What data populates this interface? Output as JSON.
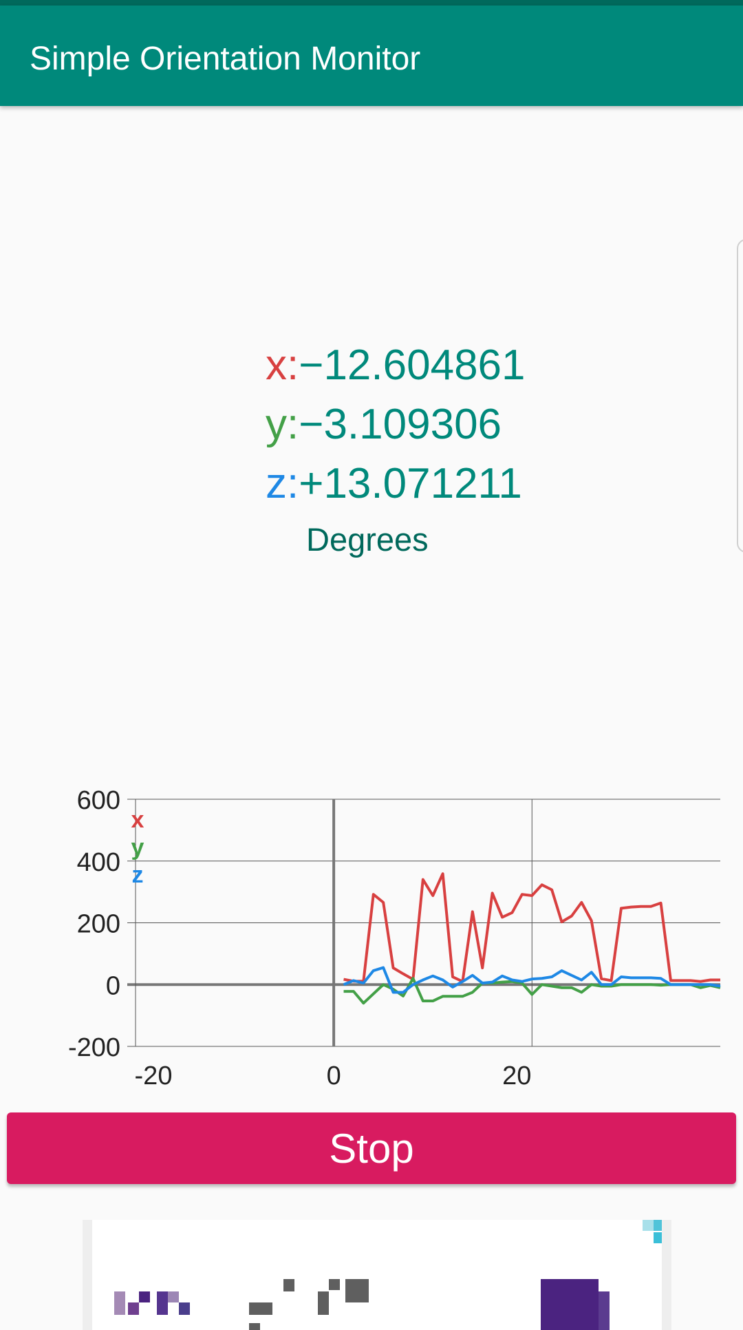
{
  "app": {
    "title": "Simple Orientation Monitor",
    "primary_color": "#00897b"
  },
  "readings": {
    "x": {
      "label": "x:",
      "value": "−12.604861",
      "color": "#d84040"
    },
    "y": {
      "label": "y:",
      "value": "−3.109306",
      "color": "#43a047"
    },
    "z": {
      "label": "z:",
      "value": "+13.071211",
      "color": "#1e88e5"
    },
    "unit": "Degrees"
  },
  "chart_data": {
    "type": "line",
    "xlim": [
      -20,
      39
    ],
    "ylim": [
      -200,
      600
    ],
    "x_ticks": [
      "-20",
      "0",
      "20"
    ],
    "y_ticks": [
      "600",
      "400",
      "200",
      "0",
      "-200"
    ],
    "grid": true,
    "legend_placement": "top-left",
    "x": [
      1,
      2,
      3,
      4,
      5,
      6,
      7,
      8,
      9,
      10,
      11,
      12,
      13,
      14,
      15,
      16,
      17,
      18,
      19,
      20,
      21,
      22,
      23,
      24,
      25,
      26,
      27,
      28,
      29,
      30,
      31,
      32,
      33,
      34,
      35,
      36,
      37,
      38,
      39
    ],
    "series": [
      {
        "name": "x",
        "color": "#d84040",
        "values": [
          17,
          11,
          11,
          292,
          266,
          54,
          35,
          17,
          340,
          288,
          359,
          25,
          10,
          236,
          54,
          296,
          218,
          233,
          292,
          288,
          323,
          307,
          203,
          222,
          266,
          207,
          19,
          13,
          247,
          251,
          253,
          253,
          264,
          13,
          13,
          13,
          10,
          15,
          15
        ]
      },
      {
        "name": "y",
        "color": "#43a047",
        "values": [
          -22,
          -22,
          -60,
          -30,
          0,
          -15,
          -37,
          20,
          -53,
          -53,
          -38,
          -38,
          -38,
          -25,
          5,
          5,
          8,
          10,
          5,
          -32,
          0,
          -5,
          -10,
          -10,
          -25,
          0,
          -5,
          -5,
          0,
          0,
          0,
          0,
          -2,
          0,
          0,
          0,
          -10,
          -3,
          -10
        ]
      },
      {
        "name": "z",
        "color": "#1e88e5",
        "values": [
          0,
          13,
          5,
          45,
          55,
          -25,
          -25,
          0,
          15,
          28,
          15,
          -8,
          10,
          30,
          5,
          8,
          28,
          15,
          10,
          18,
          20,
          25,
          45,
          30,
          15,
          40,
          0,
          0,
          25,
          22,
          22,
          22,
          20,
          0,
          0,
          0,
          0,
          0,
          -5
        ]
      }
    ]
  },
  "controls": {
    "stop_label": "Stop",
    "stop_color": "#d81b60"
  }
}
